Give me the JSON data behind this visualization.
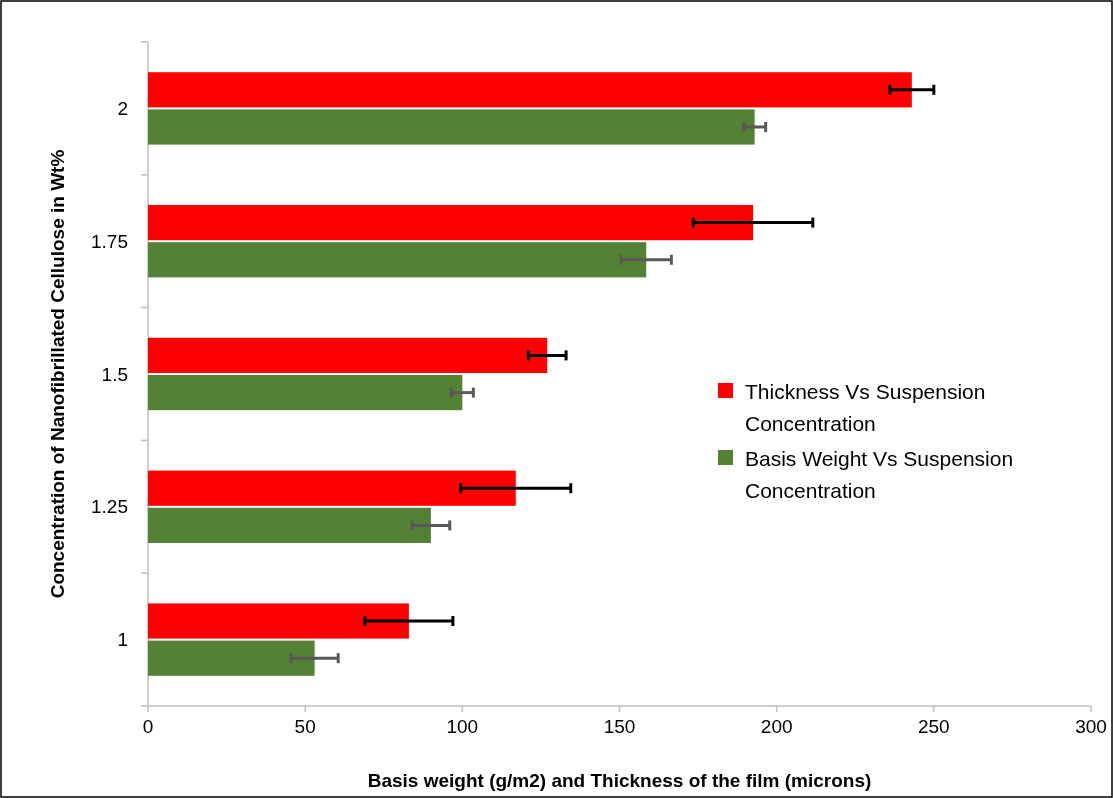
{
  "chart_data": {
    "type": "bar",
    "orientation": "horizontal",
    "xlabel": "Basis weight (g/m2) and Thickness of the film (microns)",
    "ylabel": "Concentration of  Nanofibrillated Cellulose in Wt%",
    "categories": [
      "2",
      "1.75",
      "1.5",
      "1.25",
      "1"
    ],
    "series": [
      {
        "name": "Thickness Vs Suspension Concentration",
        "color": "#ff0000",
        "values": [
          243,
          192.5,
          127,
          117,
          83
        ],
        "errors": [
          7,
          19,
          6,
          17.5,
          14
        ]
      },
      {
        "name": "Basis Weight Vs Suspension Concentration",
        "color": "#548235",
        "values": [
          193,
          158.5,
          100,
          90,
          53
        ],
        "errors": [
          3.5,
          8,
          3.5,
          6,
          7.5
        ]
      }
    ],
    "xlim": [
      0,
      300
    ],
    "xticks": [
      0,
      50,
      100,
      150,
      200,
      250,
      300
    ],
    "legend": "right"
  }
}
